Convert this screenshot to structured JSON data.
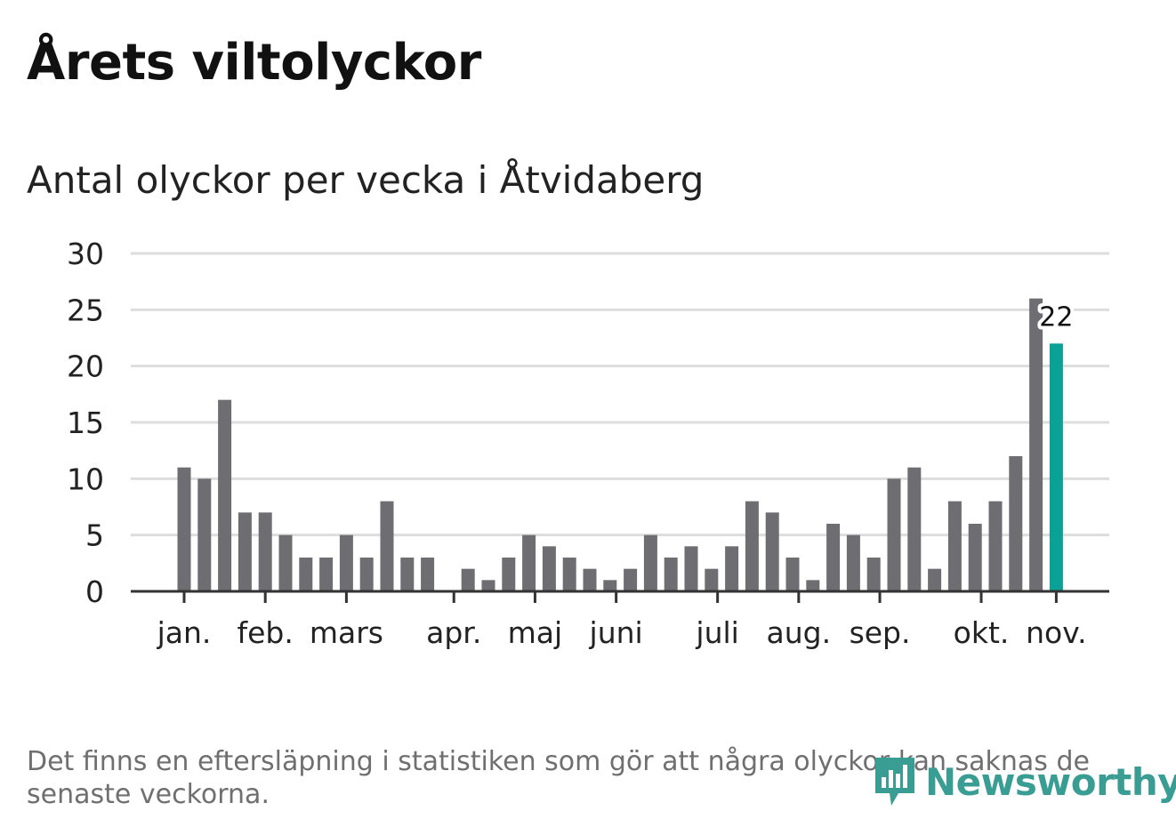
{
  "header": {
    "title": "Årets viltolyckor",
    "subtitle": "Antal olyckor per vecka i Åtvidaberg"
  },
  "footnote": "Det finns en eftersläpning i statistiken som gör att några olyckor kan saknas de senaste veckorna.",
  "brand": {
    "name": "Newsworthy",
    "icon": "newsworthy-logo-icon",
    "color": "#3a9d94"
  },
  "colors": {
    "bar": "#6e6d72",
    "highlight": "#0aa197",
    "grid": "#dddddd",
    "axis": "#333333"
  },
  "chart_data": {
    "type": "bar",
    "title": "Antal olyckor per vecka i Åtvidaberg",
    "xlabel": "",
    "ylabel": "",
    "ylim": [
      0,
      30
    ],
    "yticks": [
      0,
      5,
      10,
      15,
      20,
      25,
      30
    ],
    "grid": true,
    "weeks": [
      1,
      2,
      3,
      4,
      5,
      6,
      7,
      8,
      9,
      10,
      11,
      12,
      13,
      14,
      15,
      16,
      17,
      18,
      19,
      20,
      21,
      22,
      23,
      24,
      25,
      26,
      27,
      28,
      29,
      30,
      31,
      32,
      33,
      34,
      35,
      36,
      37,
      38,
      39,
      40,
      41,
      42,
      43,
      44
    ],
    "values": [
      11,
      10,
      17,
      7,
      7,
      5,
      3,
      3,
      5,
      3,
      8,
      3,
      3,
      0,
      2,
      1,
      3,
      5,
      4,
      3,
      2,
      1,
      2,
      5,
      3,
      4,
      2,
      4,
      8,
      7,
      3,
      1,
      6,
      5,
      3,
      10,
      11,
      2,
      8,
      6,
      8,
      12,
      26,
      22
    ],
    "highlight_index": 43,
    "highlight_label": "22",
    "month_labels": [
      {
        "label": "jan.",
        "week": 1
      },
      {
        "label": "feb.",
        "week": 5
      },
      {
        "label": "mars",
        "week": 9
      },
      {
        "label": "apr.",
        "week": 14.3
      },
      {
        "label": "maj",
        "week": 18.3
      },
      {
        "label": "juni",
        "week": 22.3
      },
      {
        "label": "juli",
        "week": 27.3
      },
      {
        "label": "aug.",
        "week": 31.3
      },
      {
        "label": "sep.",
        "week": 35.3
      },
      {
        "label": "okt.",
        "week": 40.3
      },
      {
        "label": "nov.",
        "week": 44
      }
    ]
  }
}
